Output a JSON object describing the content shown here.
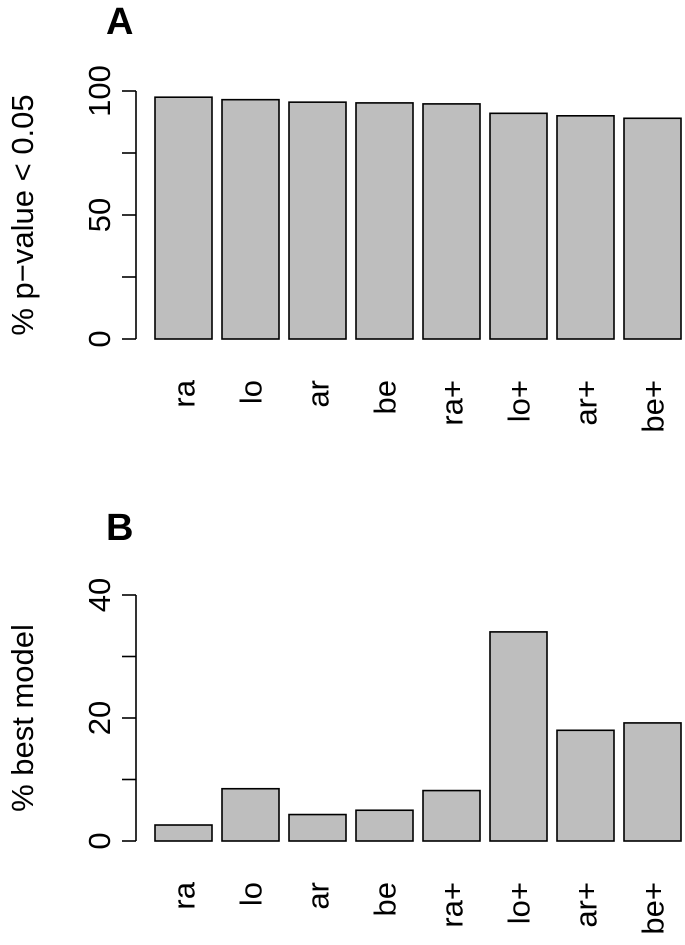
{
  "chart_data": [
    {
      "type": "bar",
      "panel": "A",
      "title": "",
      "xlabel": "",
      "ylabel": "% p−value < 0.05",
      "categories": [
        "ra",
        "lo",
        "ar",
        "be",
        "ra+",
        "lo+",
        "ar+",
        "be+"
      ],
      "values": [
        97.5,
        96.5,
        95.5,
        95.2,
        94.8,
        91.0,
        90.0,
        89.0
      ],
      "ylim": [
        0,
        100
      ],
      "yticks": [
        0,
        25,
        50,
        75,
        100
      ],
      "ytick_labels": [
        "0",
        "",
        "50",
        "",
        "100"
      ],
      "grid": false,
      "bar_color": "#bebebe"
    },
    {
      "type": "bar",
      "panel": "B",
      "title": "",
      "xlabel": "",
      "ylabel": "% best model",
      "categories": [
        "ra",
        "lo",
        "ar",
        "be",
        "ra+",
        "lo+",
        "ar+",
        "be+"
      ],
      "values": [
        2.6,
        8.5,
        4.3,
        5.0,
        8.2,
        34.0,
        18.0,
        19.2
      ],
      "ylim": [
        0,
        40
      ],
      "yticks": [
        0,
        10,
        20,
        30,
        40
      ],
      "ytick_labels": [
        "0",
        "",
        "20",
        "",
        "40"
      ],
      "grid": false,
      "bar_color": "#bebebe"
    }
  ]
}
